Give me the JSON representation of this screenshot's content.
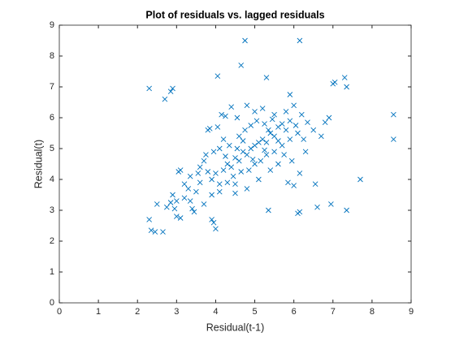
{
  "chart_data": {
    "type": "scatter",
    "title": "Plot of residuals vs. lagged residuals",
    "x_label": "Residual(t-1)",
    "y_label": "Residual(t)",
    "xlim": [
      0,
      9
    ],
    "ylim": [
      0,
      9
    ],
    "xticks": [
      0,
      1,
      2,
      3,
      4,
      5,
      6,
      7,
      8,
      9
    ],
    "yticks": [
      0,
      1,
      2,
      3,
      4,
      5,
      6,
      7,
      8,
      9
    ],
    "color": "#0072bd",
    "marker": "x",
    "x": [
      2.3,
      2.85,
      2.9,
      2.7,
      4.05,
      4.65,
      4.75,
      6.15,
      5.3,
      7.0,
      7.05,
      7.3,
      7.35,
      8.55,
      8.55,
      7.7,
      7.35,
      6.95,
      6.6,
      6.1,
      6.15,
      5.35,
      3.9,
      3.95,
      4.0,
      2.3,
      2.35,
      2.45,
      2.65,
      2.5,
      2.75,
      2.85,
      3.0,
      3.1,
      3.0,
      3.4,
      3.45,
      2.9,
      3.2,
      3.05,
      3.1,
      3.35,
      3.6,
      3.7,
      3.8,
      3.85,
      4.05,
      4.15,
      4.25,
      4.4,
      4.55,
      4.8,
      5.0,
      5.2,
      5.5,
      5.8,
      5.9,
      6.0,
      6.2,
      6.35,
      6.5,
      6.8,
      6.9,
      6.7,
      6.3,
      6.15,
      6.0,
      5.85,
      5.6,
      5.4,
      5.1,
      4.8,
      4.5,
      4.3,
      4.1,
      3.9,
      3.7,
      3.5,
      3.3,
      3.6,
      3.9,
      4.0,
      4.2,
      4.3,
      4.4,
      4.5,
      4.6,
      4.7,
      4.8,
      4.9,
      5.0,
      5.1,
      5.2,
      5.3,
      5.4,
      5.5,
      5.6,
      5.7,
      5.8,
      5.9,
      4.1,
      4.2,
      4.35,
      4.6,
      4.75,
      4.9,
      5.05,
      5.25,
      5.45,
      4.45,
      4.65,
      4.85,
      5.0,
      5.15,
      5.3,
      5.5,
      5.7,
      5.9,
      6.1,
      3.75,
      3.95,
      3.55,
      3.35,
      4.1,
      4.55,
      4.95,
      5.25,
      5.6,
      6.05,
      3.2,
      2.95,
      6.55,
      5.95,
      4.25,
      4.7,
      5.35,
      3.8,
      4.5,
      5.75,
      6.25
    ],
    "y": [
      6.95,
      6.85,
      6.95,
      6.6,
      7.35,
      7.7,
      8.5,
      8.5,
      7.3,
      7.1,
      7.15,
      7.3,
      7.0,
      6.1,
      5.3,
      4.0,
      3.0,
      3.2,
      3.1,
      2.9,
      2.95,
      3.0,
      2.7,
      2.6,
      2.4,
      2.7,
      2.35,
      2.3,
      2.3,
      3.2,
      3.1,
      3.25,
      2.8,
      2.75,
      3.3,
      3.05,
      2.95,
      3.5,
      3.4,
      4.25,
      4.3,
      4.1,
      3.9,
      4.6,
      5.6,
      5.65,
      5.7,
      6.1,
      6.05,
      6.35,
      6.0,
      6.4,
      6.2,
      6.3,
      6.1,
      6.2,
      6.75,
      6.4,
      6.1,
      5.85,
      5.6,
      5.85,
      6.0,
      5.4,
      4.9,
      4.2,
      3.8,
      3.9,
      4.5,
      4.3,
      4.0,
      3.7,
      3.55,
      3.9,
      3.6,
      3.5,
      3.2,
      3.6,
      3.7,
      4.4,
      4.0,
      4.2,
      4.3,
      4.5,
      4.4,
      4.7,
      4.6,
      4.9,
      4.8,
      5.0,
      5.1,
      5.2,
      5.3,
      5.2,
      5.5,
      5.4,
      5.7,
      5.8,
      5.6,
      5.9,
      5.0,
      5.3,
      5.1,
      5.4,
      5.6,
      5.75,
      5.9,
      5.8,
      5.95,
      4.1,
      4.25,
      4.3,
      4.5,
      4.6,
      4.8,
      4.9,
      5.1,
      5.3,
      5.5,
      4.8,
      4.9,
      4.2,
      3.3,
      3.85,
      5.0,
      4.65,
      4.95,
      5.25,
      5.75,
      3.85,
      3.05,
      3.85,
      4.6,
      4.75,
      5.25,
      5.6,
      4.25,
      3.85,
      4.8,
      5.3
    ]
  }
}
